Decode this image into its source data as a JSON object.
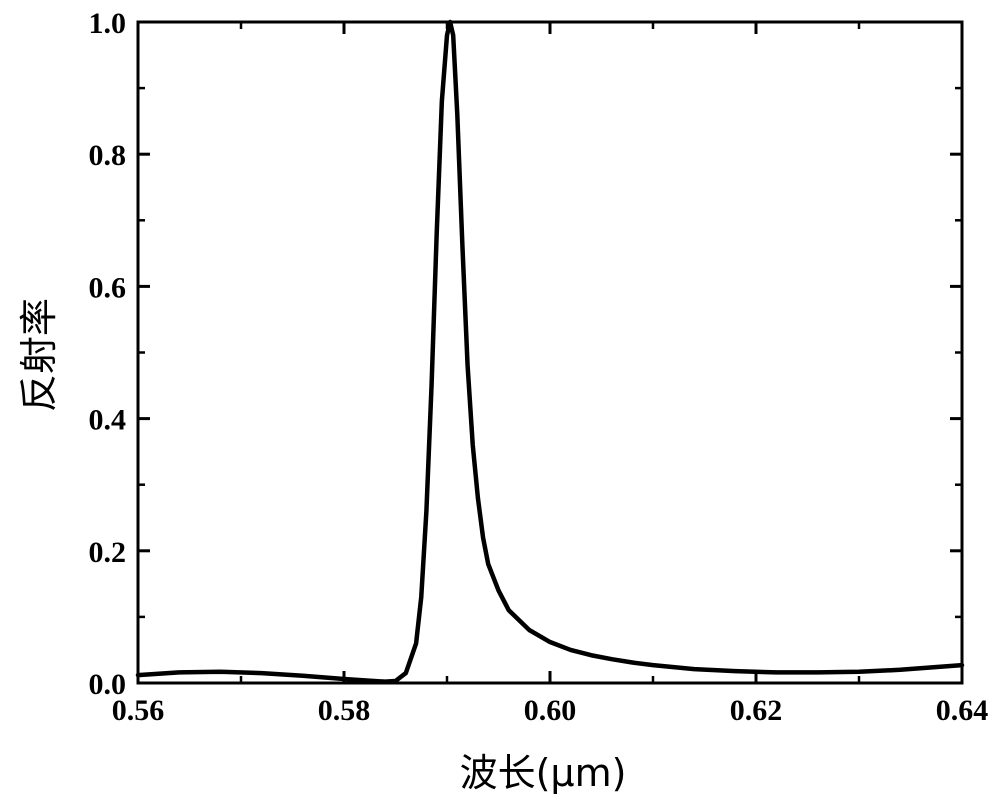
{
  "chart_data": {
    "type": "line",
    "title": "",
    "xlabel": "波长(μm)",
    "ylabel": "反射率",
    "xlim": [
      0.56,
      0.64
    ],
    "ylim": [
      0.0,
      1.0
    ],
    "xticks": [
      "0.56",
      "0.58",
      "0.60",
      "0.62",
      "0.64"
    ],
    "yticks": [
      "0.0",
      "0.2",
      "0.4",
      "0.6",
      "0.8",
      "1.0"
    ],
    "grid": false,
    "legend": "none",
    "line_color": "#000000",
    "series": [
      {
        "x": [
          0.56,
          0.564,
          0.568,
          0.572,
          0.576,
          0.58,
          0.582,
          0.584,
          0.585,
          0.586,
          0.587,
          0.5875,
          0.588,
          0.5885,
          0.589,
          0.5895,
          0.59,
          0.5903,
          0.5906,
          0.591,
          0.5915,
          0.592,
          0.5925,
          0.593,
          0.5935,
          0.594,
          0.595,
          0.596,
          0.598,
          0.6,
          0.602,
          0.604,
          0.606,
          0.608,
          0.61,
          0.614,
          0.618,
          0.622,
          0.626,
          0.63,
          0.634,
          0.64
        ],
        "y": [
          0.012,
          0.016,
          0.017,
          0.015,
          0.011,
          0.006,
          0.004,
          0.002,
          0.003,
          0.015,
          0.06,
          0.13,
          0.26,
          0.45,
          0.68,
          0.88,
          0.98,
          1.0,
          0.98,
          0.86,
          0.66,
          0.48,
          0.36,
          0.28,
          0.22,
          0.18,
          0.14,
          0.11,
          0.08,
          0.062,
          0.05,
          0.042,
          0.036,
          0.031,
          0.027,
          0.021,
          0.018,
          0.016,
          0.016,
          0.017,
          0.02,
          0.027
        ]
      }
    ]
  }
}
